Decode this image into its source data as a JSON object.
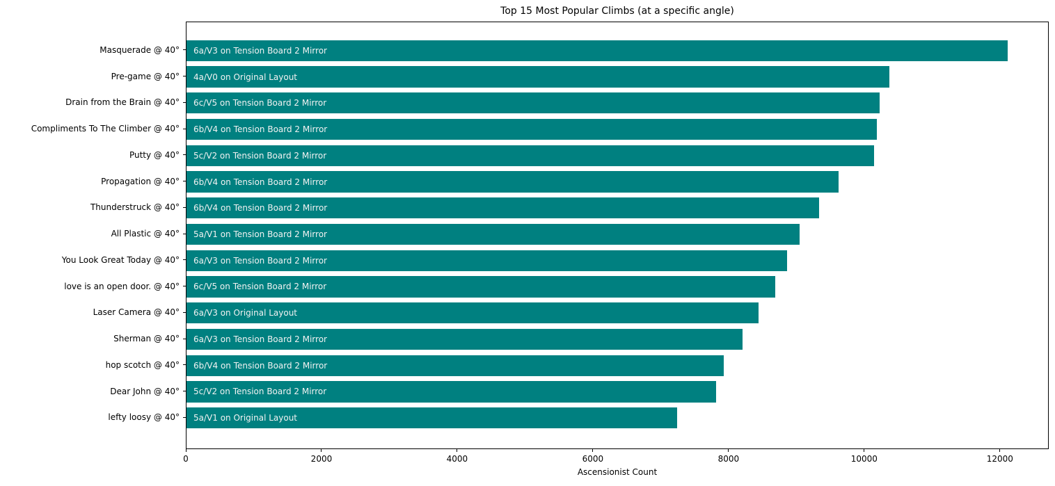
{
  "chart_data": {
    "type": "bar",
    "orientation": "horizontal",
    "title": "Top 15 Most Popular Climbs (at a specific angle)",
    "xlabel": "Ascensionist Count",
    "ylabel": "",
    "xlim": [
      0,
      12720
    ],
    "xticks": [
      0,
      2000,
      4000,
      6000,
      8000,
      10000,
      12000
    ],
    "grid": false,
    "legend": "none",
    "bar_color": "#008080",
    "bar_label_color": "#f2f2f2",
    "axis_color": "#000000",
    "categories": [
      "Masquerade @ 40°",
      "Pre-game @ 40°",
      "Drain from the Brain @ 40°",
      "Compliments To The Climber @ 40°",
      "Putty @ 40°",
      "Propagation @ 40°",
      "Thunderstruck @ 40°",
      "All Plastic @ 40°",
      "You Look Great Today @ 40°",
      "love is an open door. @ 40°",
      "Laser Camera @ 40°",
      "Sherman @ 40°",
      "hop scotch @ 40°",
      "Dear John @ 40°",
      "lefty loosy @ 40°"
    ],
    "values": [
      12120,
      10380,
      10230,
      10190,
      10150,
      9630,
      9340,
      9050,
      8870,
      8690,
      8450,
      8210,
      7930,
      7820,
      7240
    ],
    "bar_labels": [
      "6a/V3 on Tension Board 2 Mirror",
      "4a/V0 on Original Layout",
      "6c/V5 on Tension Board 2 Mirror",
      "6b/V4 on Tension Board 2 Mirror",
      "5c/V2 on Tension Board 2 Mirror",
      "6b/V4 on Tension Board 2 Mirror",
      "6b/V4 on Tension Board 2 Mirror",
      "5a/V1 on Tension Board 2 Mirror",
      "6a/V3 on Tension Board 2 Mirror",
      "6c/V5 on Tension Board 2 Mirror",
      "6a/V3 on Original Layout",
      "6a/V3 on Tension Board 2 Mirror",
      "6b/V4 on Tension Board 2 Mirror",
      "5c/V2 on Tension Board 2 Mirror",
      "5a/V1 on Original Layout"
    ]
  }
}
